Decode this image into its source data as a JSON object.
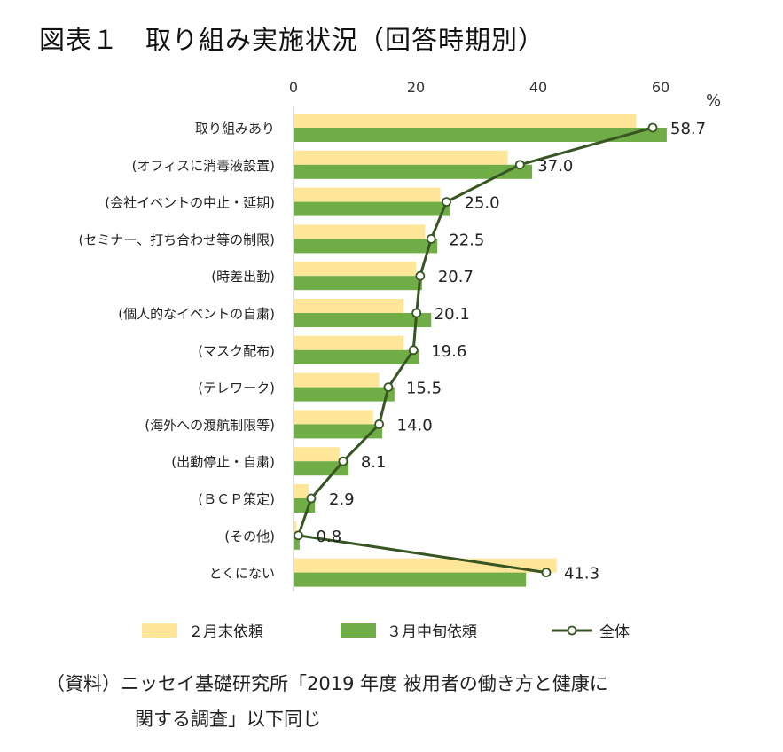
{
  "title": "図表１　取り組み実施状況（回答時期別）",
  "source_line1": "（資料）ニッセイ基礎研究所「2019 年度 被用者の働き方と健康に",
  "source_line2": "関する調査」以下同じ",
  "chart_data": {
    "type": "bar",
    "orientation": "horizontal",
    "unit": "%",
    "xlim": [
      0,
      62
    ],
    "ticks": [
      0,
      20,
      40,
      60
    ],
    "categories": [
      "取り組みあり",
      "(オフィスに消毒液設置)",
      "(会社イベントの中止・延期)",
      "(セミナー、打ち合わせ等の制限)",
      "(時差出勤)",
      "(個人的なイベントの自粛)",
      "(マスク配布)",
      "(テレワーク)",
      "(海外への渡航制限等)",
      "(出勤停止・自粛)",
      "(ＢＣＰ策定)",
      "(その他)",
      "とくにない"
    ],
    "series": [
      {
        "name": "２月末依頼",
        "type": "bar",
        "color": "#ffe699",
        "values": [
          56,
          35,
          24,
          21.5,
          20,
          18,
          18,
          14,
          13,
          7.5,
          2.5,
          0.5,
          43
        ]
      },
      {
        "name": "３月中旬依頼",
        "type": "bar",
        "color": "#70ad47",
        "values": [
          61,
          39,
          25.5,
          23.5,
          21,
          22.5,
          20.5,
          16.5,
          14.5,
          9,
          3.5,
          1,
          38
        ]
      },
      {
        "name": "全体",
        "type": "line",
        "color": "#375623",
        "values": [
          58.7,
          37.0,
          25.0,
          22.5,
          20.7,
          20.1,
          19.6,
          15.5,
          14.0,
          8.1,
          2.9,
          0.8,
          41.3
        ],
        "labels": [
          "58.7",
          "37.0",
          "25.0",
          "22.5",
          "20.7",
          "20.1",
          "19.6",
          "15.5",
          "14.0",
          "8.1",
          "2.9",
          "0.8",
          "41.3"
        ]
      }
    ],
    "legend_placement": "bottom",
    "grid": false
  }
}
